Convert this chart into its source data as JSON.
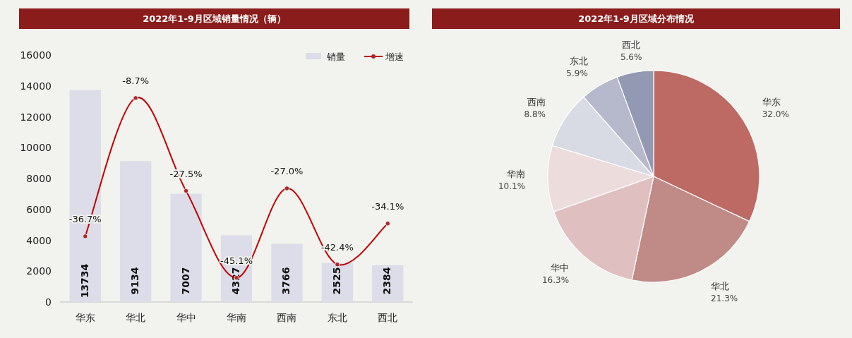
{
  "chart_data": [
    {
      "type": "bar",
      "title": "2022年1-9月区域销量情况（辆）",
      "categories": [
        "华东",
        "华北",
        "华中",
        "华南",
        "西南",
        "东北",
        "西北"
      ],
      "series": [
        {
          "name": "销量",
          "type": "bar",
          "color": "#dcdde8",
          "values": [
            13734,
            9134,
            7007,
            4327,
            3766,
            2525,
            2384
          ]
        },
        {
          "name": "增速",
          "type": "line",
          "axis": "y2",
          "color": "#c00000",
          "marker": "circle",
          "values": [
            -36.7,
            -8.7,
            -27.5,
            -45.1,
            -27.0,
            -42.4,
            -34.1
          ],
          "value_labels": [
            "-36.7%",
            "-8.7%",
            "-27.5%",
            "-45.1%",
            "-27.0%",
            "-42.4%",
            "-34.1%"
          ]
        }
      ],
      "ylim": [
        0,
        16000
      ],
      "yticks": [
        0,
        2000,
        4000,
        6000,
        8000,
        10000,
        12000,
        14000,
        16000
      ],
      "y2lim": [
        -50,
        0
      ],
      "data_labels": true,
      "legend": "top right",
      "grid": false
    },
    {
      "type": "pie",
      "title": "2022年1-9月区域分布情况",
      "categories": [
        "华东",
        "华北",
        "华中",
        "华南",
        "西南",
        "东北",
        "西北"
      ],
      "values": [
        32.0,
        21.3,
        16.3,
        10.1,
        8.8,
        5.9,
        5.6
      ],
      "colors": [
        "#bd6a64",
        "#c08a86",
        "#dfbfc0",
        "#ecdcdc",
        "#d8dbe3",
        "#b6b8cc",
        "#9499b3"
      ],
      "value_labels": [
        "32.0%",
        "21.3%",
        "16.3%",
        "10.1%",
        "8.8%",
        "5.9%",
        "5.6%"
      ]
    }
  ]
}
